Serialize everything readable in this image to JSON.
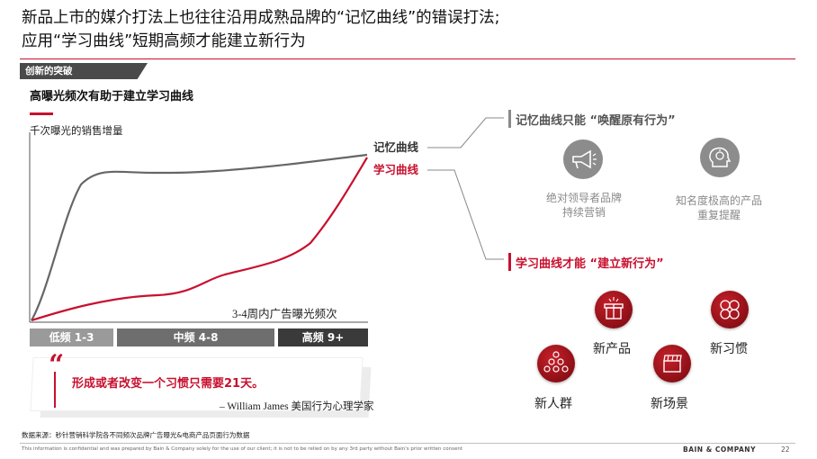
{
  "header": {
    "title_line1": "新品上市的媒介打法上也往往沿用成熟品牌的“记忆曲线”的错误打法;",
    "title_line2": "应用“学习曲线”短期高频才能建立新行为"
  },
  "section_tag": "创新的突破",
  "subtitle": "高曝光频次有助于建立学习曲线",
  "chart": {
    "y_label": "千次曝光的销售增量",
    "x_label": "3-4周内广告曝光频次",
    "curve_labels": {
      "memory": "记忆曲线",
      "learning": "学习曲线"
    },
    "colors": {
      "memory": "#666666",
      "learning": "#c8102e"
    },
    "frequency_bands": [
      {
        "label": "低频 1-3",
        "color": "#9a9a9a"
      },
      {
        "label": "中频 4-8",
        "color": "#6e6e6e"
      },
      {
        "label": "高频 9+",
        "color": "#3a3a3a"
      }
    ]
  },
  "quote": {
    "mark": "“",
    "text": "形成或者改变一个习惯只需要21天。",
    "author": "– William James 美国行为心理学家"
  },
  "right_panel": {
    "memory_heading": "记忆曲线只能 “唤醒原有行为”",
    "memory_items": [
      {
        "icon": "megaphone-icon",
        "text_line1": "绝对领导者品牌",
        "text_line2": "持续营销"
      },
      {
        "icon": "brain-idea-icon",
        "text_line1": "知名度极高的产品",
        "text_line2": "重复提醒"
      }
    ],
    "learning_heading": "学习曲线才能 “建立新行为”",
    "learning_items": [
      {
        "icon": "gift-box-icon",
        "label": "新产品"
      },
      {
        "icon": "habit-icons-icon",
        "label": "新习惯"
      },
      {
        "icon": "people-group-icon",
        "label": "新人群"
      },
      {
        "icon": "clapperboard-icon",
        "label": "新场景"
      }
    ]
  },
  "footer": {
    "source": "数据来源：秒针营销科学院各不同频次品牌广告曝光&电商产品页面行为数据",
    "confidential": "This information is confidential and was prepared by Bain & Company solely for the use of our client; it is not to be relied on by any 3rd party without Bain's prior written consent",
    "brand": "BAIN & COMPANY",
    "page": "22"
  }
}
